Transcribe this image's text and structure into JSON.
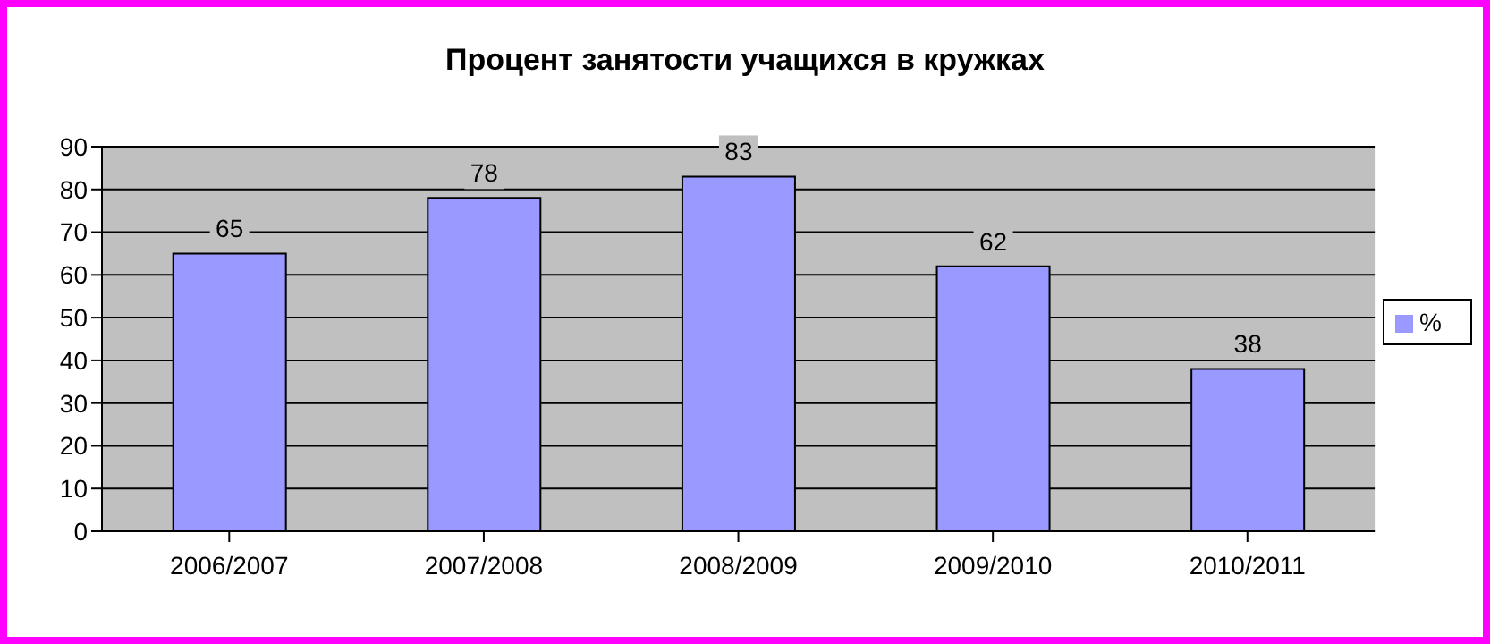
{
  "chart_data": {
    "type": "bar",
    "title": "Процент занятости учащихся в кружках",
    "categories": [
      "2006/2007",
      "2007/2008",
      "2008/2009",
      "2009/2010",
      "2010/2011"
    ],
    "series": [
      {
        "name": "%",
        "color": "#9999ff",
        "values": [
          65,
          78,
          83,
          62,
          38
        ]
      }
    ],
    "ylim": [
      0,
      90
    ],
    "yticks": [
      0,
      10,
      20,
      30,
      40,
      50,
      60,
      70,
      80,
      90
    ],
    "grid": "y",
    "legend": "right",
    "data_labels": true
  }
}
